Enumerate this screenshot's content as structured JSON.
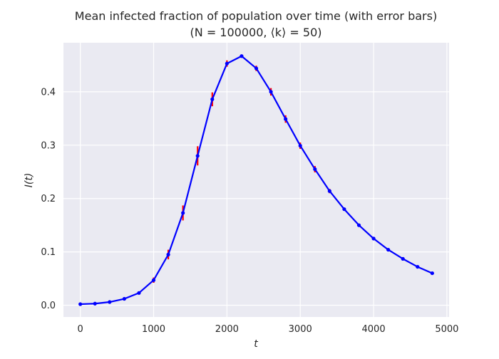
{
  "chart_data": {
    "type": "line",
    "title_line1": "Mean infected fraction of population over time (with error bars)",
    "title_line2": "(N = 100000, ⟨k⟩ = 50)",
    "xlabel": "t",
    "ylabel": "I(t)",
    "xlim": [
      -230,
      5030
    ],
    "ylim": [
      -0.022,
      0.492
    ],
    "xticks": [
      0,
      1000,
      2000,
      3000,
      4000,
      5000
    ],
    "yticks": [
      0.0,
      0.1,
      0.2,
      0.3,
      0.4
    ],
    "ytick_labels": [
      "0.0",
      "0.1",
      "0.2",
      "0.3",
      "0.4"
    ],
    "grid": true,
    "style": {
      "background": "#eaeaf2",
      "grid_color": "#ffffff",
      "line_color": "#0000ff",
      "error_color": "#ff0000"
    },
    "series": [
      {
        "x": [
          0,
          200,
          400,
          600,
          800,
          1000,
          1200,
          1400,
          1600,
          1800,
          2000,
          2200,
          2400,
          2600,
          2800,
          3000,
          3200,
          3400,
          3600,
          3800,
          4000,
          4200,
          4400,
          4600,
          4800
        ],
        "y": [
          0.002,
          0.003,
          0.006,
          0.012,
          0.023,
          0.047,
          0.095,
          0.173,
          0.28,
          0.386,
          0.453,
          0.467,
          0.444,
          0.4,
          0.349,
          0.299,
          0.255,
          0.214,
          0.18,
          0.15,
          0.125,
          0.104,
          0.087,
          0.072,
          0.06
        ],
        "err": [
          0.001,
          0.001,
          0.002,
          0.002,
          0.003,
          0.005,
          0.009,
          0.014,
          0.018,
          0.013,
          0.006,
          0.003,
          0.005,
          0.007,
          0.007,
          0.006,
          0.006,
          0.004,
          0.003,
          0.003,
          0.002,
          0.002,
          0.002,
          0.002,
          0.002
        ]
      }
    ]
  }
}
